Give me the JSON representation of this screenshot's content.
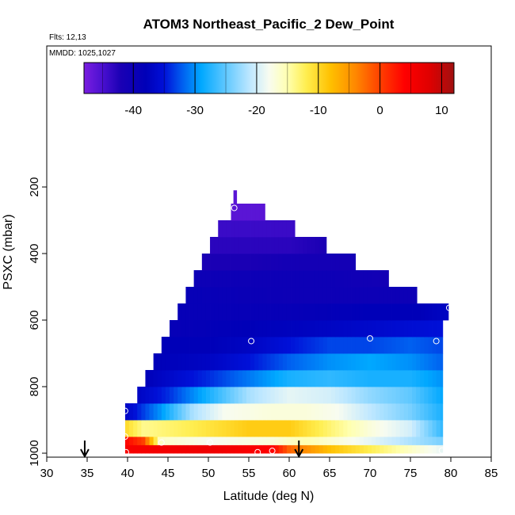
{
  "chart_data": {
    "type": "heatmap",
    "title": "ATOM3 Northeast_Pacific_2 Dew_Point",
    "flights_label": "Flts: 12,13",
    "dates_label": "MMDD: 1025,1027",
    "xlabel": "Latitude (deg N)",
    "ylabel": "PSXC (mbar)",
    "xlim": [
      30,
      85
    ],
    "ylim": [
      1000,
      130
    ],
    "y_reversed": true,
    "x_ticks": [
      "30",
      "35",
      "40",
      "45",
      "50",
      "55",
      "60",
      "65",
      "70",
      "75",
      "80",
      "85"
    ],
    "y_ticks": [
      "200",
      "400",
      "600",
      "800",
      "1000"
    ],
    "colorbar": {
      "range": [
        -48,
        12
      ],
      "ticks": [
        "-40",
        "-30",
        "-20",
        "-10",
        "0",
        "10"
      ],
      "stops": [
        {
          "v": -48,
          "c": "#7a1ee0"
        },
        {
          "v": -45,
          "c": "#4a10d0"
        },
        {
          "v": -42,
          "c": "#1a00b4"
        },
        {
          "v": -38,
          "c": "#0000b8"
        },
        {
          "v": -35,
          "c": "#0010d8"
        },
        {
          "v": -32,
          "c": "#0060f0"
        },
        {
          "v": -29,
          "c": "#00a8ff"
        },
        {
          "v": -25,
          "c": "#60c8ff"
        },
        {
          "v": -21,
          "c": "#c0e8ff"
        },
        {
          "v": -18,
          "c": "#f8fcf0"
        },
        {
          "v": -15,
          "c": "#ffffb0"
        },
        {
          "v": -12,
          "c": "#ffee50"
        },
        {
          "v": -8,
          "c": "#ffc000"
        },
        {
          "v": -4,
          "c": "#ff8800"
        },
        {
          "v": 0,
          "c": "#ff4000"
        },
        {
          "v": 4,
          "c": "#ff0000"
        },
        {
          "v": 8,
          "c": "#e00000"
        },
        {
          "v": 12,
          "c": "#a01010"
        }
      ]
    },
    "rows": [
      {
        "p_top": 975,
        "p_bot": 1000,
        "lat_min": 39.7,
        "lat_max": 79,
        "anchors": [
          [
            39.7,
            5
          ],
          [
            50,
            6
          ],
          [
            58,
            4
          ],
          [
            60,
            -2
          ],
          [
            65,
            -8
          ],
          [
            70,
            -12
          ],
          [
            75,
            -16
          ],
          [
            79,
            -19
          ]
        ]
      },
      {
        "p_top": 950,
        "p_bot": 975,
        "lat_min": 39.7,
        "lat_max": 79,
        "anchors": [
          [
            39.7,
            4
          ],
          [
            42,
            0
          ],
          [
            44,
            -16
          ],
          [
            50,
            -18
          ],
          [
            58,
            -17
          ],
          [
            62,
            -15
          ],
          [
            70,
            -19
          ],
          [
            79,
            -24
          ]
        ]
      },
      {
        "p_top": 900,
        "p_bot": 950,
        "lat_min": 39.7,
        "lat_max": 79,
        "anchors": [
          [
            39.7,
            -10
          ],
          [
            42,
            -14
          ],
          [
            48,
            -12
          ],
          [
            55,
            -9
          ],
          [
            60,
            -9
          ],
          [
            65,
            -13
          ],
          [
            70,
            -17
          ],
          [
            75,
            -20
          ],
          [
            79,
            -27
          ]
        ]
      },
      {
        "p_top": 850,
        "p_bot": 900,
        "lat_min": 39.7,
        "lat_max": 79,
        "anchors": [
          [
            39.7,
            -37
          ],
          [
            44,
            -30
          ],
          [
            48,
            -22
          ],
          [
            52,
            -18
          ],
          [
            58,
            -17
          ],
          [
            62,
            -17
          ],
          [
            66,
            -18
          ],
          [
            70,
            -21
          ],
          [
            75,
            -24
          ],
          [
            79,
            -28
          ]
        ]
      },
      {
        "p_top": 800,
        "p_bot": 850,
        "lat_min": 41.2,
        "lat_max": 79,
        "anchors": [
          [
            41.2,
            -37
          ],
          [
            45,
            -34
          ],
          [
            50,
            -28
          ],
          [
            55,
            -22
          ],
          [
            60,
            -19
          ],
          [
            65,
            -20
          ],
          [
            70,
            -23
          ],
          [
            75,
            -25
          ],
          [
            79,
            -29
          ]
        ]
      },
      {
        "p_top": 750,
        "p_bot": 800,
        "lat_min": 42.2,
        "lat_max": 79,
        "anchors": [
          [
            42.2,
            -38
          ],
          [
            46,
            -36
          ],
          [
            50,
            -34
          ],
          [
            55,
            -31
          ],
          [
            60,
            -28
          ],
          [
            65,
            -27
          ],
          [
            70,
            -28
          ],
          [
            75,
            -28
          ],
          [
            79,
            -30
          ]
        ]
      },
      {
        "p_top": 700,
        "p_bot": 750,
        "lat_min": 43.2,
        "lat_max": 79,
        "anchors": [
          [
            43.2,
            -38
          ],
          [
            50,
            -37
          ],
          [
            55,
            -35
          ],
          [
            60,
            -32
          ],
          [
            65,
            -30
          ],
          [
            70,
            -29
          ],
          [
            75,
            -30
          ],
          [
            79,
            -32
          ]
        ]
      },
      {
        "p_top": 650,
        "p_bot": 700,
        "lat_min": 44.2,
        "lat_max": 79,
        "anchors": [
          [
            44.2,
            -38
          ],
          [
            50,
            -38
          ],
          [
            55,
            -37
          ],
          [
            60,
            -35
          ],
          [
            65,
            -33
          ],
          [
            70,
            -33
          ],
          [
            75,
            -32
          ],
          [
            79,
            -33
          ]
        ]
      },
      {
        "p_top": 600,
        "p_bot": 650,
        "lat_min": 45.2,
        "lat_max": 79,
        "anchors": [
          [
            45.2,
            -39
          ],
          [
            55,
            -38
          ],
          [
            65,
            -37
          ],
          [
            72,
            -36
          ],
          [
            79,
            -35
          ]
        ]
      },
      {
        "p_top": 550,
        "p_bot": 600,
        "lat_min": 46.2,
        "lat_max": 79.7,
        "anchors": [
          [
            46.2,
            -39
          ],
          [
            60,
            -39
          ],
          [
            70,
            -38
          ],
          [
            76,
            -38
          ],
          [
            79.7,
            -37
          ]
        ]
      },
      {
        "p_top": 500,
        "p_bot": 550,
        "lat_min": 47.2,
        "lat_max": 75.8,
        "anchors": [
          [
            47.2,
            -39
          ],
          [
            60,
            -40
          ],
          [
            70,
            -40
          ],
          [
            75.8,
            -40
          ]
        ]
      },
      {
        "p_top": 450,
        "p_bot": 500,
        "lat_min": 48.2,
        "lat_max": 72.3,
        "anchors": [
          [
            48.2,
            -40
          ],
          [
            55,
            -40
          ],
          [
            65,
            -40
          ],
          [
            72.3,
            -41
          ]
        ]
      },
      {
        "p_top": 400,
        "p_bot": 450,
        "lat_min": 49.2,
        "lat_max": 68.2,
        "anchors": [
          [
            49.2,
            -42
          ],
          [
            55,
            -42
          ],
          [
            60,
            -41
          ],
          [
            68.2,
            -41
          ]
        ]
      },
      {
        "p_top": 350,
        "p_bot": 400,
        "lat_min": 50.2,
        "lat_max": 64.6,
        "anchors": [
          [
            50.2,
            -43
          ],
          [
            55,
            -43
          ],
          [
            60,
            -43
          ],
          [
            64.6,
            -42
          ]
        ]
      },
      {
        "p_top": 300,
        "p_bot": 350,
        "lat_min": 51.2,
        "lat_max": 60.7,
        "anchors": [
          [
            51.2,
            -44
          ],
          [
            55,
            -44
          ],
          [
            60.7,
            -44
          ]
        ]
      },
      {
        "p_top": 250,
        "p_bot": 300,
        "lat_min": 52.8,
        "lat_max": 57,
        "anchors": [
          [
            52.8,
            -46
          ],
          [
            57,
            -46
          ]
        ]
      },
      {
        "p_top": 210,
        "p_bot": 250,
        "lat_min": 53.1,
        "lat_max": 53.5,
        "anchors": [
          [
            53.1,
            -46
          ],
          [
            53.5,
            -46
          ]
        ]
      }
    ],
    "sample_points": [
      {
        "lat": 53.2,
        "p": 263
      },
      {
        "lat": 55.3,
        "p": 663
      },
      {
        "lat": 70.0,
        "p": 655
      },
      {
        "lat": 78.2,
        "p": 663
      },
      {
        "lat": 79.8,
        "p": 563
      },
      {
        "lat": 39.7,
        "p": 873
      },
      {
        "lat": 39.7,
        "p": 950
      },
      {
        "lat": 44.2,
        "p": 968
      },
      {
        "lat": 50.2,
        "p": 968
      },
      {
        "lat": 39.8,
        "p": 997
      },
      {
        "lat": 56.1,
        "p": 997
      },
      {
        "lat": 57.9,
        "p": 993
      },
      {
        "lat": 78.9,
        "p": 992
      }
    ],
    "arrows": [
      {
        "lat": 34.7
      },
      {
        "lat": 61.2
      }
    ],
    "colors": {
      "arrow": "#000000",
      "circle": "#ffffff",
      "frame": "#000000"
    }
  }
}
